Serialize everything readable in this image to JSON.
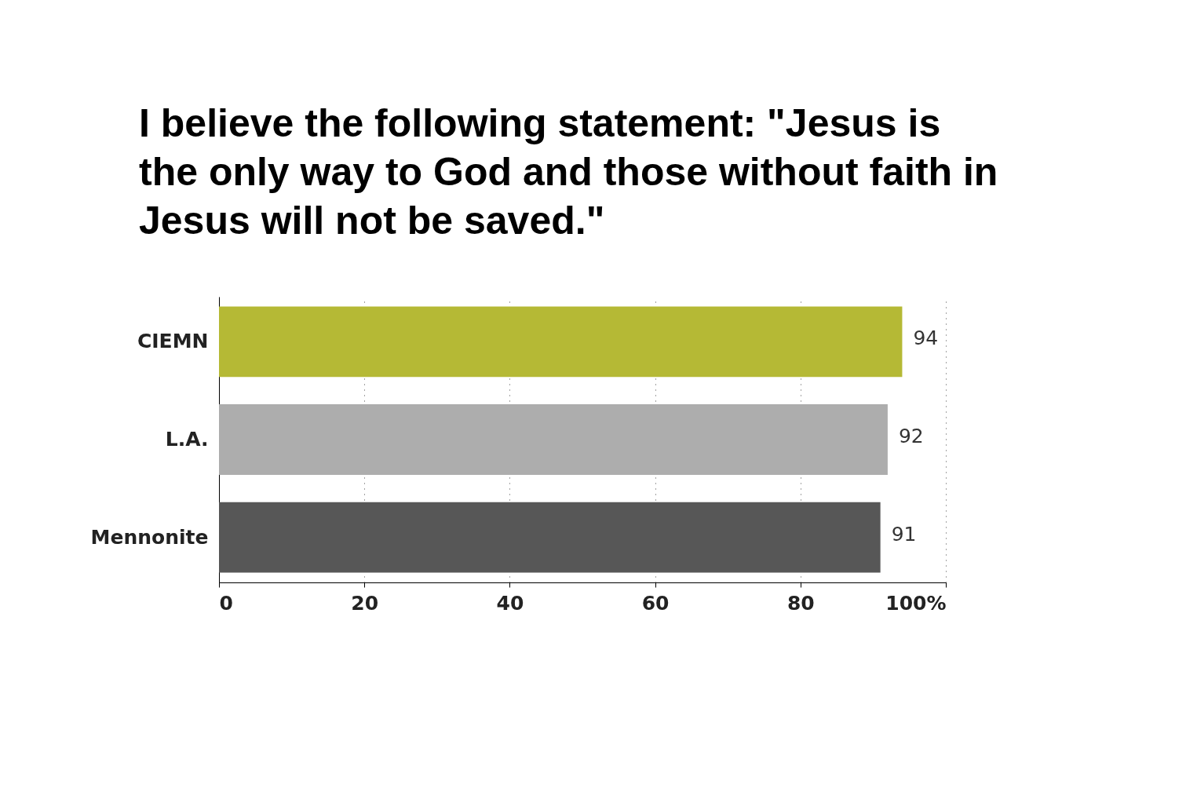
{
  "chart_data": {
    "type": "bar",
    "orientation": "horizontal",
    "title": "I believe the following statement: \"Jesus is the only way to God and those without faith in Jesus will not be saved.\"",
    "categories": [
      "CIEMN",
      "L.A.",
      "Mennonite"
    ],
    "values": [
      94,
      92,
      91
    ],
    "colors": [
      "#b5b935",
      "#adadad",
      "#575757"
    ],
    "xlim": [
      0,
      100
    ],
    "xticks": [
      0,
      20,
      40,
      60,
      80,
      {
        "value": 100,
        "label": "100%"
      }
    ],
    "grid": "x",
    "data_labels": true
  }
}
